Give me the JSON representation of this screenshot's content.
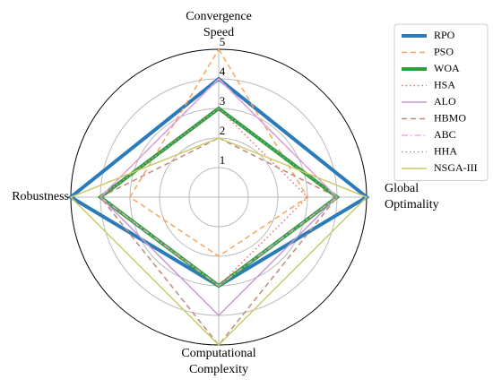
{
  "chart_data": {
    "type": "radar",
    "categories": [
      [
        "Convergence",
        "Speed"
      ],
      [
        "Global",
        "Optimality"
      ],
      [
        "Computational",
        "Complexity"
      ],
      [
        "Robustness"
      ]
    ],
    "rlim": [
      0,
      5
    ],
    "rticks": [
      1,
      2,
      3,
      4,
      5
    ],
    "grid": true,
    "legend": "upper right",
    "series": [
      {
        "name": "RPO",
        "color": "#2a7bb8",
        "linestyle": "solid",
        "linewidth": 4,
        "values": [
          4,
          5,
          3,
          5
        ]
      },
      {
        "name": "PSO",
        "color": "#f6a55c",
        "linestyle": "dashed",
        "linewidth": 1.5,
        "values": [
          5,
          3,
          2,
          3
        ]
      },
      {
        "name": "WOA",
        "color": "#2ca03c",
        "linestyle": "solid",
        "linewidth": 4,
        "values": [
          3,
          4,
          3,
          4
        ]
      },
      {
        "name": "HSA",
        "color": "#f07070",
        "linestyle": "dotted",
        "linewidth": 1.5,
        "values": [
          3,
          3,
          3,
          4
        ]
      },
      {
        "name": "ALO",
        "color": "#c49ad6",
        "linestyle": "solid",
        "linewidth": 1.5,
        "values": [
          4,
          4,
          4,
          4
        ]
      },
      {
        "name": "HBMO",
        "color": "#c08a7c",
        "linestyle": "dashed",
        "linewidth": 1.5,
        "values": [
          2,
          4,
          5,
          4
        ]
      },
      {
        "name": "ABC",
        "color": "#f2a8d8",
        "linestyle": "dashdot",
        "linewidth": 1.5,
        "values": [
          4,
          4,
          3,
          4
        ]
      },
      {
        "name": "HHA",
        "color": "#a0a0a0",
        "linestyle": "dotted",
        "linewidth": 1.5,
        "values": [
          3,
          4,
          3,
          4
        ]
      },
      {
        "name": "NSGA-III",
        "color": "#c9cc6a",
        "linestyle": "solid",
        "linewidth": 1.5,
        "values": [
          2,
          5,
          5,
          5
        ]
      }
    ]
  }
}
